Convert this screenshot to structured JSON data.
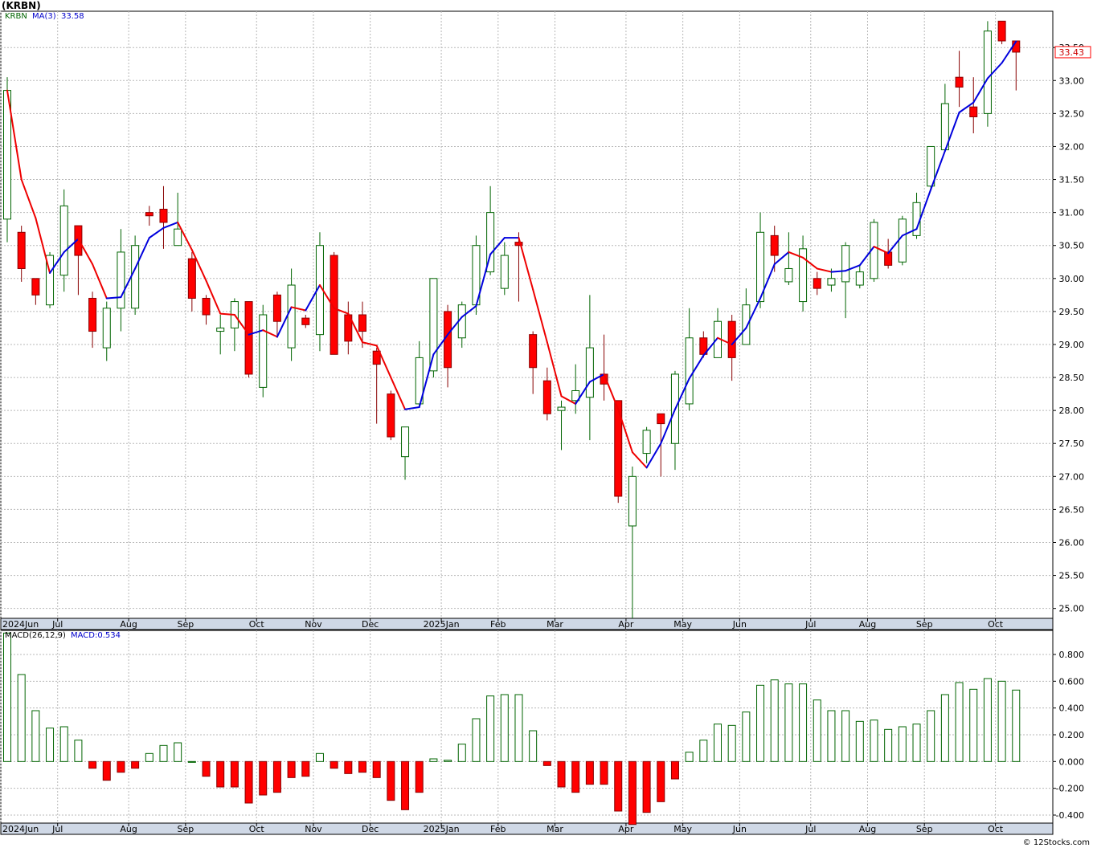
{
  "header": {
    "title": "(KRBN)",
    "symbol_label": "KRBN",
    "ma_label": "MA(3)",
    "ma_value": "33.58",
    "last_price": "33.43"
  },
  "macd_panel": {
    "label": "MACD(26,12,9)",
    "value_label": "MACD:0.534"
  },
  "footer": {
    "watermark": "© 12Stocks.com"
  },
  "colors": {
    "up_candle": "#006400",
    "down_candle": "#ff0000",
    "ma_up": "#0000dd",
    "ma_down": "#ee0000",
    "grid": "#b8b8b8",
    "axis_band": "#cfd8e6"
  },
  "chart_data": [
    {
      "type": "candlestick",
      "title": "(KRBN)",
      "period": "weekly",
      "ylim": [
        24.85,
        34.05
      ],
      "y_ticks": [
        25.0,
        25.5,
        26.0,
        26.5,
        27.0,
        27.5,
        28.0,
        28.5,
        29.0,
        29.5,
        30.0,
        30.5,
        31.0,
        31.5,
        32.0,
        32.5,
        33.0,
        33.5
      ],
      "y_tick_labels": [
        "25.00",
        "25.50",
        "26.00",
        "26.50",
        "27.00",
        "27.50",
        "28.00",
        "28.50",
        "29.00",
        "29.50",
        "30.00",
        "30.50",
        "31.00",
        "31.50",
        "32.00",
        "32.50",
        "33.00",
        "33.50"
      ],
      "x_tick_labels": [
        {
          "label": "2024Jun",
          "index": 0
        },
        {
          "label": "Jul",
          "index": 4
        },
        {
          "label": "Aug",
          "index": 9
        },
        {
          "label": "Sep",
          "index": 13
        },
        {
          "label": "Oct",
          "index": 18
        },
        {
          "label": "Nov",
          "index": 22
        },
        {
          "label": "Dec",
          "index": 26
        },
        {
          "label": "2025Jan",
          "index": 31
        },
        {
          "label": "Feb",
          "index": 35
        },
        {
          "label": "Mar",
          "index": 39
        },
        {
          "label": "Apr",
          "index": 44
        },
        {
          "label": "May",
          "index": 48
        },
        {
          "label": "Jun",
          "index": 52
        },
        {
          "label": "Jul",
          "index": 57
        },
        {
          "label": "Aug",
          "index": 61
        },
        {
          "label": "Sep",
          "index": 65
        },
        {
          "label": "Oct",
          "index": 70
        }
      ],
      "candles": [
        {
          "o": 30.9,
          "h": 33.05,
          "l": 30.55,
          "c": 32.85
        },
        {
          "o": 30.7,
          "h": 30.8,
          "l": 29.95,
          "c": 30.15
        },
        {
          "o": 30.0,
          "h": 30.0,
          "l": 29.6,
          "c": 29.75
        },
        {
          "o": 29.6,
          "h": 30.4,
          "l": 29.55,
          "c": 30.35
        },
        {
          "o": 30.05,
          "h": 31.35,
          "l": 29.8,
          "c": 31.1
        },
        {
          "o": 30.8,
          "h": 30.8,
          "l": 29.75,
          "c": 30.35
        },
        {
          "o": 29.7,
          "h": 29.8,
          "l": 28.95,
          "c": 29.2
        },
        {
          "o": 28.95,
          "h": 29.65,
          "l": 28.75,
          "c": 29.55
        },
        {
          "o": 29.55,
          "h": 30.75,
          "l": 29.2,
          "c": 30.4
        },
        {
          "o": 29.55,
          "h": 30.65,
          "l": 29.45,
          "c": 30.5
        },
        {
          "o": 31.0,
          "h": 31.1,
          "l": 30.8,
          "c": 30.95
        },
        {
          "o": 31.05,
          "h": 31.4,
          "l": 30.45,
          "c": 30.85
        },
        {
          "o": 30.5,
          "h": 31.3,
          "l": 30.5,
          "c": 30.75
        },
        {
          "o": 30.3,
          "h": 30.4,
          "l": 29.5,
          "c": 29.7
        },
        {
          "o": 29.7,
          "h": 29.75,
          "l": 29.3,
          "c": 29.45
        },
        {
          "o": 29.2,
          "h": 29.45,
          "l": 28.85,
          "c": 29.25
        },
        {
          "o": 29.25,
          "h": 29.7,
          "l": 28.9,
          "c": 29.65
        },
        {
          "o": 29.65,
          "h": 29.65,
          "l": 28.5,
          "c": 28.55
        },
        {
          "o": 28.35,
          "h": 29.6,
          "l": 28.2,
          "c": 29.45
        },
        {
          "o": 29.75,
          "h": 29.8,
          "l": 29.1,
          "c": 29.35
        },
        {
          "o": 28.95,
          "h": 30.15,
          "l": 28.75,
          "c": 29.9
        },
        {
          "o": 29.4,
          "h": 29.45,
          "l": 29.25,
          "c": 29.3
        },
        {
          "o": 29.15,
          "h": 30.7,
          "l": 28.9,
          "c": 30.5
        },
        {
          "o": 30.35,
          "h": 30.4,
          "l": 28.85,
          "c": 28.85
        },
        {
          "o": 29.45,
          "h": 29.65,
          "l": 28.85,
          "c": 29.05
        },
        {
          "o": 29.45,
          "h": 29.65,
          "l": 28.95,
          "c": 29.2
        },
        {
          "o": 28.9,
          "h": 28.95,
          "l": 27.8,
          "c": 28.7
        },
        {
          "o": 28.25,
          "h": 28.3,
          "l": 27.55,
          "c": 27.6
        },
        {
          "o": 27.3,
          "h": 27.75,
          "l": 26.95,
          "c": 27.75
        },
        {
          "o": 28.1,
          "h": 29.05,
          "l": 28.05,
          "c": 28.8
        },
        {
          "o": 28.6,
          "h": 30.0,
          "l": 28.5,
          "c": 30.0
        },
        {
          "o": 29.5,
          "h": 29.6,
          "l": 28.35,
          "c": 28.65
        },
        {
          "o": 29.1,
          "h": 29.65,
          "l": 28.95,
          "c": 29.6
        },
        {
          "o": 29.6,
          "h": 30.65,
          "l": 29.45,
          "c": 30.5
        },
        {
          "o": 30.1,
          "h": 31.4,
          "l": 30.05,
          "c": 31.0
        },
        {
          "o": 29.85,
          "h": 30.55,
          "l": 29.75,
          "c": 30.35
        },
        {
          "o": 30.55,
          "h": 30.7,
          "l": 29.65,
          "c": 30.5
        },
        {
          "o": 29.15,
          "h": 29.2,
          "l": 28.25,
          "c": 28.65
        },
        {
          "o": 28.45,
          "h": 28.65,
          "l": 27.85,
          "c": 27.95
        },
        {
          "o": 28.0,
          "h": 28.15,
          "l": 27.4,
          "c": 28.05
        },
        {
          "o": 28.15,
          "h": 28.7,
          "l": 27.95,
          "c": 28.3
        },
        {
          "o": 28.2,
          "h": 29.75,
          "l": 27.55,
          "c": 28.95
        },
        {
          "o": 28.55,
          "h": 29.15,
          "l": 28.15,
          "c": 28.4
        },
        {
          "o": 28.15,
          "h": 28.15,
          "l": 26.6,
          "c": 26.7
        },
        {
          "o": 26.25,
          "h": 27.15,
          "l": 24.85,
          "c": 27.0
        },
        {
          "o": 27.35,
          "h": 27.75,
          "l": 27.2,
          "c": 27.7
        },
        {
          "o": 27.95,
          "h": 27.95,
          "l": 27.0,
          "c": 27.8
        },
        {
          "o": 27.5,
          "h": 28.6,
          "l": 27.1,
          "c": 28.55
        },
        {
          "o": 28.1,
          "h": 29.55,
          "l": 28.0,
          "c": 29.1
        },
        {
          "o": 29.1,
          "h": 29.2,
          "l": 28.8,
          "c": 28.85
        },
        {
          "o": 28.8,
          "h": 29.55,
          "l": 28.8,
          "c": 29.35
        },
        {
          "o": 29.35,
          "h": 29.45,
          "l": 28.45,
          "c": 28.8
        },
        {
          "o": 29.0,
          "h": 29.85,
          "l": 29.0,
          "c": 29.6
        },
        {
          "o": 29.65,
          "h": 31.0,
          "l": 29.55,
          "c": 30.7
        },
        {
          "o": 30.65,
          "h": 30.8,
          "l": 30.1,
          "c": 30.35
        },
        {
          "o": 29.95,
          "h": 30.7,
          "l": 29.9,
          "c": 30.15
        },
        {
          "o": 29.65,
          "h": 30.65,
          "l": 29.5,
          "c": 30.45
        },
        {
          "o": 30.0,
          "h": 30.1,
          "l": 29.75,
          "c": 29.85
        },
        {
          "o": 29.9,
          "h": 30.15,
          "l": 29.8,
          "c": 30.0
        },
        {
          "o": 29.95,
          "h": 30.55,
          "l": 29.4,
          "c": 30.5
        },
        {
          "o": 29.9,
          "h": 30.2,
          "l": 29.85,
          "c": 30.1
        },
        {
          "o": 30.0,
          "h": 30.9,
          "l": 29.95,
          "c": 30.85
        },
        {
          "o": 30.4,
          "h": 30.6,
          "l": 30.15,
          "c": 30.2
        },
        {
          "o": 30.25,
          "h": 30.95,
          "l": 30.2,
          "c": 30.9
        },
        {
          "o": 30.65,
          "h": 31.3,
          "l": 30.6,
          "c": 31.15
        },
        {
          "o": 31.4,
          "h": 32.0,
          "l": 31.35,
          "c": 32.0
        },
        {
          "o": 31.95,
          "h": 32.95,
          "l": 31.95,
          "c": 32.65
        },
        {
          "o": 33.05,
          "h": 33.45,
          "l": 32.6,
          "c": 32.9
        },
        {
          "o": 32.6,
          "h": 33.05,
          "l": 32.2,
          "c": 32.45
        },
        {
          "o": 32.5,
          "h": 33.9,
          "l": 32.3,
          "c": 33.75
        },
        {
          "o": 33.9,
          "h": 33.9,
          "l": 33.55,
          "c": 33.6
        },
        {
          "o": 33.6,
          "h": 33.6,
          "l": 32.85,
          "c": 33.43
        }
      ],
      "ma_label": "MA(3)",
      "ma_last": 33.58
    },
    {
      "type": "bar",
      "title": "MACD(26,12,9)",
      "ylim": [
        -0.46,
        0.98
      ],
      "y_ticks": [
        -0.4,
        -0.2,
        0.0,
        0.2,
        0.4,
        0.6,
        0.8
      ],
      "y_tick_labels": [
        "-0.400",
        "-0.200",
        "0.000",
        "0.200",
        "0.400",
        "0.600",
        "0.800"
      ],
      "values": [
        0.96,
        0.65,
        0.38,
        0.25,
        0.26,
        0.16,
        -0.05,
        -0.14,
        -0.08,
        -0.05,
        0.06,
        0.12,
        0.14,
        0.0,
        -0.11,
        -0.19,
        -0.19,
        -0.31,
        -0.25,
        -0.23,
        -0.12,
        -0.11,
        0.06,
        -0.05,
        -0.09,
        -0.08,
        -0.12,
        -0.29,
        -0.36,
        -0.23,
        0.02,
        0.01,
        0.13,
        0.32,
        0.49,
        0.5,
        0.5,
        0.23,
        -0.03,
        -0.19,
        -0.23,
        -0.17,
        -0.17,
        -0.37,
        -0.47,
        -0.38,
        -0.3,
        -0.13,
        0.07,
        0.16,
        0.28,
        0.27,
        0.37,
        0.57,
        0.61,
        0.58,
        0.58,
        0.46,
        0.38,
        0.38,
        0.3,
        0.31,
        0.24,
        0.26,
        0.28,
        0.38,
        0.5,
        0.59,
        0.54,
        0.62,
        0.6,
        0.534
      ],
      "last_label": "MACD:0.534"
    }
  ]
}
